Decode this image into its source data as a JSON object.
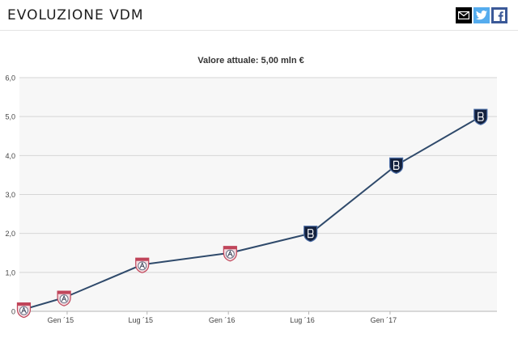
{
  "header": {
    "title": "EVOLUZIONE VDM",
    "share_icons": [
      "mail-icon",
      "twitter-icon",
      "facebook-icon"
    ]
  },
  "colors": {
    "line": "#2f4a6b",
    "grid": "#d6d6d6",
    "plot_bg": "#f7f7f7",
    "club_a_border": "#c0455a",
    "club_b_fill": "#14213d"
  },
  "chart_data": {
    "type": "line",
    "title": "Valore attuale: 5,00 mln €",
    "xlabel": "",
    "ylabel": "",
    "ylim": [
      0,
      6
    ],
    "yticks": [
      "0",
      "1,0",
      "2,0",
      "3,0",
      "4,0",
      "5,0",
      "6,0"
    ],
    "x_ticks": [
      {
        "date": "2015-01-01",
        "label": "Gen ´15"
      },
      {
        "date": "2015-07-01",
        "label": "Lug ´15"
      },
      {
        "date": "2016-01-01",
        "label": "Gen ´16"
      },
      {
        "date": "2016-07-01",
        "label": "Lug ´16"
      },
      {
        "date": "2017-01-01",
        "label": "Gen ´17"
      }
    ],
    "x_range": [
      "2014-09-15",
      "2017-08-31"
    ],
    "grid": true,
    "series": [
      {
        "points": [
          {
            "x": "2014-09-25",
            "y": 0.05,
            "club": "A"
          },
          {
            "x": "2014-12-25",
            "y": 0.35,
            "club": "A"
          },
          {
            "x": "2015-06-20",
            "y": 1.2,
            "club": "A"
          },
          {
            "x": "2016-01-05",
            "y": 1.5,
            "club": "A"
          },
          {
            "x": "2016-07-05",
            "y": 2.0,
            "club": "B"
          },
          {
            "x": "2017-01-15",
            "y": 3.75,
            "club": "B"
          },
          {
            "x": "2017-07-25",
            "y": 5.0,
            "club": "B"
          }
        ]
      }
    ]
  }
}
